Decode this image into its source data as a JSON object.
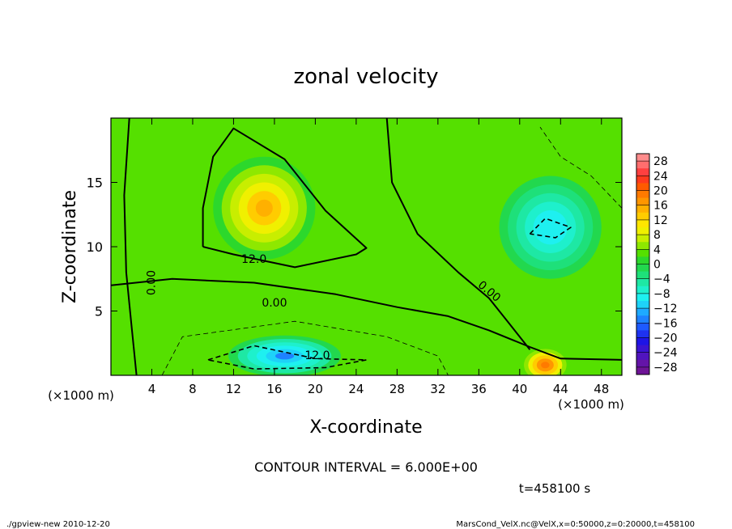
{
  "chart_data": {
    "type": "heatmap",
    "title": "zonal velocity",
    "xlabel": "X-coordinate",
    "ylabel": "Z-coordinate",
    "x_unit_label": "(×1000 m)",
    "y_unit_label": "(×1000 m)",
    "xlim": [
      0,
      50
    ],
    "ylim": [
      0,
      20
    ],
    "x_ticks": [
      4,
      8,
      12,
      16,
      20,
      24,
      28,
      32,
      36,
      40,
      44,
      48
    ],
    "y_ticks": [
      5,
      10,
      15
    ],
    "colorbar": {
      "ticks": [
        28,
        24,
        20,
        16,
        12,
        8,
        4,
        0,
        -4,
        -8,
        -12,
        -16,
        -20,
        -24,
        -28
      ],
      "levels": [
        {
          "min": 28,
          "max": 30,
          "color": "#ff8c8c"
        },
        {
          "min": 26,
          "max": 28,
          "color": "#ff6e6e"
        },
        {
          "min": 24,
          "max": 26,
          "color": "#ff4040"
        },
        {
          "min": 22,
          "max": 24,
          "color": "#ff3a1e"
        },
        {
          "min": 20,
          "max": 22,
          "color": "#ff5a00"
        },
        {
          "min": 18,
          "max": 20,
          "color": "#ff7a00"
        },
        {
          "min": 16,
          "max": 18,
          "color": "#ff9600"
        },
        {
          "min": 14,
          "max": 16,
          "color": "#ffb000"
        },
        {
          "min": 12,
          "max": 14,
          "color": "#ffcc00"
        },
        {
          "min": 10,
          "max": 12,
          "color": "#ffe600"
        },
        {
          "min": 8,
          "max": 10,
          "color": "#f0f000"
        },
        {
          "min": 6,
          "max": 8,
          "color": "#c8ee00"
        },
        {
          "min": 4,
          "max": 6,
          "color": "#8ee800"
        },
        {
          "min": 2,
          "max": 4,
          "color": "#55e000"
        },
        {
          "min": 0,
          "max": 2,
          "color": "#2cd82c"
        },
        {
          "min": -2,
          "max": 0,
          "color": "#22d84e"
        },
        {
          "min": -4,
          "max": -2,
          "color": "#1ee07a"
        },
        {
          "min": -6,
          "max": -4,
          "color": "#1ee8a4"
        },
        {
          "min": -8,
          "max": -6,
          "color": "#1ef0cc"
        },
        {
          "min": -10,
          "max": -8,
          "color": "#1ef0f0"
        },
        {
          "min": -12,
          "max": -10,
          "color": "#1ed2f8"
        },
        {
          "min": -14,
          "max": -12,
          "color": "#1eaaff"
        },
        {
          "min": -16,
          "max": -14,
          "color": "#1e82ff"
        },
        {
          "min": -18,
          "max": -16,
          "color": "#1e5aff"
        },
        {
          "min": -20,
          "max": -18,
          "color": "#1e32f0"
        },
        {
          "min": -22,
          "max": -20,
          "color": "#1e14e6"
        },
        {
          "min": -24,
          "max": -22,
          "color": "#3a14d2"
        },
        {
          "min": -26,
          "max": -24,
          "color": "#5014be"
        },
        {
          "min": -28,
          "max": -26,
          "color": "#6414a8"
        },
        {
          "min": -30,
          "max": -28,
          "color": "#6e1496"
        }
      ]
    },
    "field_features": [
      {
        "x": 15,
        "z": 13,
        "sx": 5,
        "sz": 4,
        "value": 17
      },
      {
        "x": 17,
        "z": 1.5,
        "sx": 5.5,
        "sz": 1.6,
        "value": -16
      },
      {
        "x": 42.5,
        "z": 0.8,
        "sx": 2.5,
        "sz": 1.5,
        "value": 22
      },
      {
        "x": 43,
        "z": 11.5,
        "sx": 5,
        "sz": 4,
        "value": -11
      }
    ],
    "contour_labels": [
      "12.0",
      "0.00",
      "-12.0",
      "0.00",
      "0.00"
    ],
    "contour_interval_text": "CONTOUR INTERVAL = 6.000E+00",
    "time_text": "t=458100 s"
  },
  "footer": {
    "left": "./gpview-new  2010-12-20",
    "right": "MarsCond_VelX.nc@VelX,x=0:50000,z=0:20000,t=458100"
  }
}
